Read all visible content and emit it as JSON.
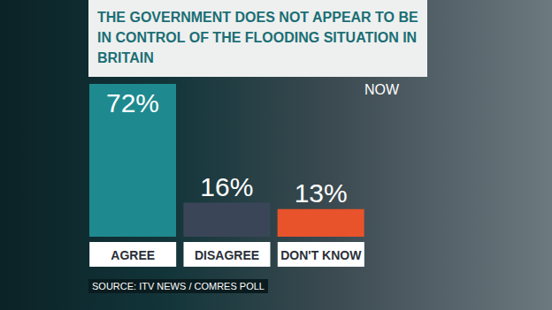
{
  "chart_data": {
    "type": "bar",
    "title": "THE GOVERNMENT DOES NOT APPEAR TO BE IN CONTROL OF THE FLOODING SITUATION IN BRITAIN",
    "annotations": [
      "NOW",
      "SOURCE: ITV NEWS / COMRES POLL"
    ],
    "categories": [
      "AGREE",
      "DISAGREE",
      "DON'T KNOW"
    ],
    "values": [
      72,
      16,
      13
    ],
    "value_labels": [
      "72%",
      "16%",
      "13%"
    ],
    "colors": [
      "#1e8a8f",
      "#3a4658",
      "#e8532b"
    ],
    "data_labels": true,
    "tick_labels": "x",
    "grid": false
  }
}
